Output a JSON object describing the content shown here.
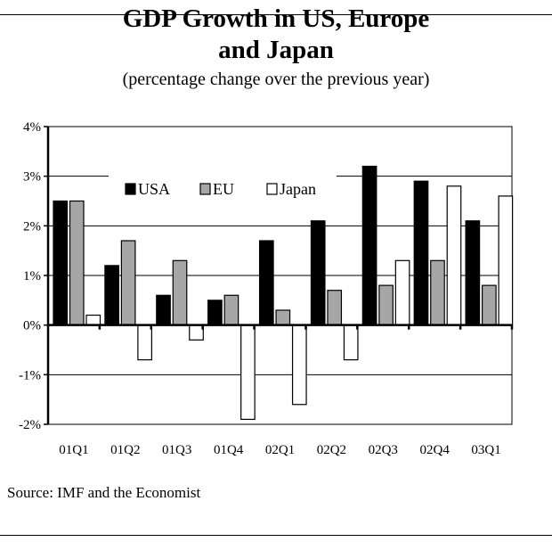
{
  "chart_data": {
    "type": "bar",
    "title_line1": "GDP Growth in US, Europe",
    "title_line2": "and Japan",
    "subtitle": "(percentage change over the previous year)",
    "xlabel": "",
    "ylabel": "",
    "categories": [
      "01Q1",
      "01Q2",
      "01Q3",
      "01Q4",
      "02Q1",
      "02Q2",
      "02Q3",
      "02Q4",
      "03Q1"
    ],
    "series": [
      {
        "name": "USA",
        "color": "#000000",
        "values": [
          2.5,
          1.2,
          0.6,
          0.5,
          1.7,
          2.1,
          3.2,
          2.9,
          2.1
        ]
      },
      {
        "name": "EU",
        "color": "#a6a6a6",
        "values": [
          2.5,
          1.7,
          1.3,
          0.6,
          0.3,
          0.7,
          0.8,
          1.3,
          0.8
        ]
      },
      {
        "name": "Japan",
        "color": "#ffffff",
        "values": [
          0.2,
          -0.7,
          -0.3,
          -1.9,
          -1.6,
          -0.7,
          1.3,
          2.8,
          2.6
        ]
      }
    ],
    "ylim": [
      -2,
      4
    ],
    "yticks": [
      -2,
      -1,
      0,
      1,
      2,
      3,
      4
    ],
    "ytick_labels": [
      "-2%",
      "-1%",
      "0%",
      "1%",
      "2%",
      "3%",
      "4%"
    ],
    "grid": true,
    "legend_position": "upper-center"
  },
  "source": "Source: IMF and the Economist"
}
